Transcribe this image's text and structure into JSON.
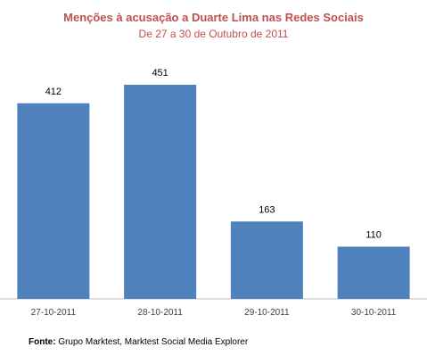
{
  "chart_data": {
    "type": "bar",
    "title": "Menções à acusação  a Duarte Lima nas Redes Sociais",
    "subtitle": "De 27 a 30 de Outubro de 2011",
    "categories": [
      "27-10-2011",
      "28-10-2011",
      "29-10-2011",
      "30-10-2011"
    ],
    "values": [
      412,
      451,
      163,
      110
    ],
    "ylim": [
      0,
      451
    ],
    "grid": false,
    "legend": "none",
    "bar_color": "#4f81bd",
    "axis_color": "#bfbfbf",
    "xlabel": "",
    "ylabel": ""
  },
  "source": {
    "label": "Fonte:",
    "text": "Grupo Marktest, Marktest Social Media Explorer"
  },
  "colors": {
    "title": "#c0504d"
  }
}
